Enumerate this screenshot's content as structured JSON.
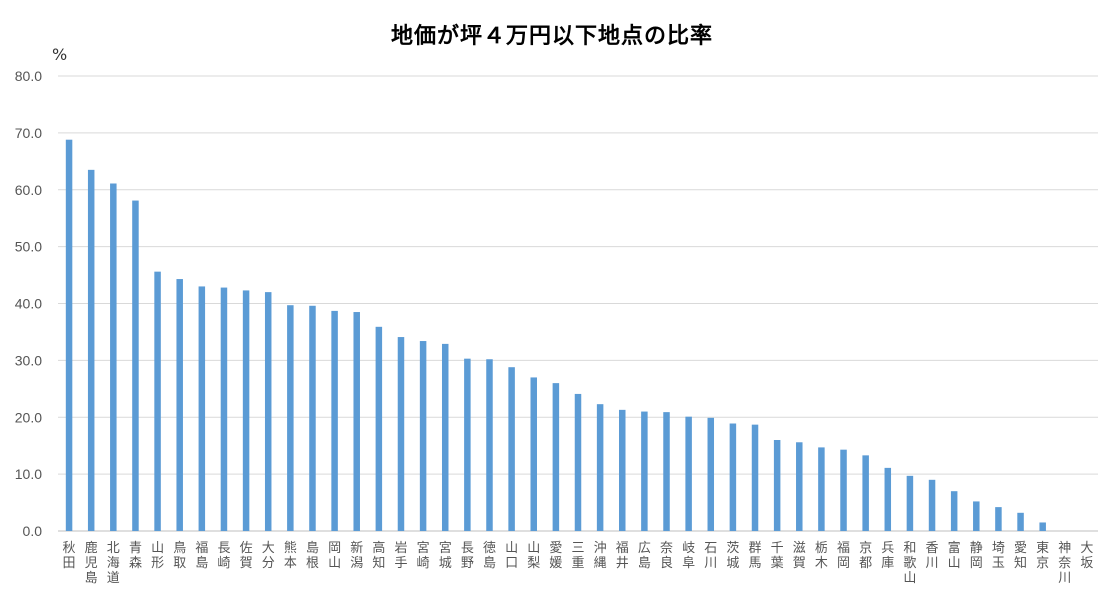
{
  "chart_data": {
    "type": "bar",
    "title": "地価が坪４万円以下地点の比率",
    "ylabel": "%",
    "xlabel": "",
    "ylim": [
      0,
      80
    ],
    "yticks": [
      "0.0",
      "10.0",
      "20.0",
      "30.0",
      "40.0",
      "50.0",
      "60.0",
      "70.0",
      "80.0"
    ],
    "grid": true,
    "bar_color": "#5b9bd5",
    "categories": [
      "秋田",
      "鹿児島",
      "北海道",
      "青森",
      "山形",
      "鳥取",
      "福島",
      "長崎",
      "佐賀",
      "大分",
      "熊本",
      "島根",
      "岡山",
      "新潟",
      "高知",
      "岩手",
      "宮崎",
      "宮城",
      "長野",
      "徳島",
      "山口",
      "山梨",
      "愛媛",
      "三重",
      "沖縄",
      "福井",
      "広島",
      "奈良",
      "岐阜",
      "石川",
      "茨城",
      "群馬",
      "千葉",
      "滋賀",
      "栃木",
      "福岡",
      "京都",
      "兵庫",
      "和歌山",
      "香川",
      "富山",
      "静岡",
      "埼玉",
      "愛知",
      "東京",
      "神奈川",
      "大坂"
    ],
    "values": [
      68.8,
      63.5,
      61.1,
      58.1,
      45.6,
      44.3,
      43.0,
      42.8,
      42.3,
      42.0,
      39.7,
      39.6,
      38.7,
      38.5,
      35.9,
      34.1,
      33.4,
      32.9,
      30.3,
      30.2,
      28.8,
      27.0,
      26.0,
      24.1,
      22.3,
      21.3,
      21.0,
      20.9,
      20.1,
      19.9,
      18.9,
      18.7,
      16.0,
      15.6,
      14.7,
      14.3,
      13.3,
      11.1,
      9.7,
      9.0,
      7.0,
      5.2,
      4.2,
      3.2,
      1.5,
      0.0,
      0.0
    ]
  }
}
